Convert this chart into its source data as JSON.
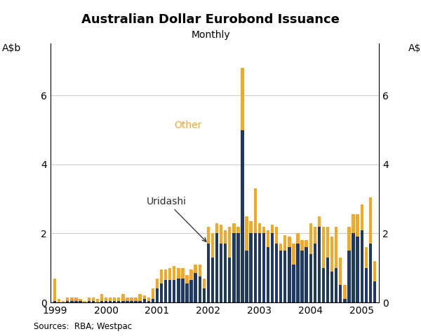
{
  "title": "Australian Dollar Eurobond Issuance",
  "subtitle": "Monthly",
  "ylabel_left": "A$b",
  "ylabel_right": "A$b",
  "source": "Sources:  RBA; Westpac",
  "uridashi_color": "#1f3864",
  "other_color": "#f5a623",
  "ylim": [
    0,
    7.5
  ],
  "yticks": [
    0,
    2,
    4,
    6
  ],
  "annotation_uridashi": "Uridashi",
  "annotation_other": "Other",
  "uridashi": [
    0.05,
    0.0,
    0.0,
    0.05,
    0.05,
    0.05,
    0.05,
    0.0,
    0.05,
    0.05,
    0.0,
    0.05,
    0.05,
    0.05,
    0.05,
    0.05,
    0.05,
    0.05,
    0.05,
    0.05,
    0.05,
    0.1,
    0.05,
    0.1,
    0.4,
    0.55,
    0.65,
    0.65,
    0.65,
    0.7,
    0.7,
    0.55,
    0.65,
    0.85,
    0.75,
    0.4,
    1.7,
    1.3,
    2.0,
    1.7,
    1.7,
    1.3,
    2.0,
    2.0,
    5.0,
    1.5,
    2.0,
    2.0,
    2.0,
    2.0,
    1.6,
    2.0,
    1.7,
    1.5,
    1.5,
    1.6,
    1.1,
    1.7,
    1.5,
    1.6,
    1.4,
    1.7,
    2.2,
    1.0,
    1.3,
    0.9,
    1.0,
    0.5,
    0.1,
    1.5,
    2.0,
    1.9,
    2.1,
    1.0,
    1.7,
    0.6
  ],
  "other": [
    0.65,
    0.1,
    0.05,
    0.1,
    0.1,
    0.1,
    0.05,
    0.05,
    0.1,
    0.1,
    0.1,
    0.2,
    0.1,
    0.1,
    0.1,
    0.1,
    0.2,
    0.1,
    0.1,
    0.1,
    0.2,
    0.1,
    0.1,
    0.3,
    0.3,
    0.4,
    0.3,
    0.35,
    0.4,
    0.3,
    0.3,
    0.25,
    0.3,
    0.25,
    0.35,
    0.3,
    0.5,
    0.7,
    0.3,
    0.55,
    0.4,
    0.9,
    0.3,
    0.2,
    1.8,
    1.0,
    0.35,
    1.3,
    0.3,
    0.2,
    0.5,
    0.25,
    0.5,
    0.2,
    0.45,
    0.3,
    0.6,
    0.3,
    0.3,
    0.2,
    0.9,
    0.5,
    0.3,
    1.2,
    0.9,
    1.0,
    1.2,
    0.8,
    0.4,
    0.7,
    0.55,
    0.65,
    0.75,
    0.6,
    1.35,
    0.6
  ],
  "xtick_positions": [
    0,
    12,
    24,
    36,
    48,
    60,
    72
  ],
  "xtick_labels": [
    "1999",
    "2000",
    "2001",
    "2002",
    "2003",
    "2004",
    "2005"
  ]
}
